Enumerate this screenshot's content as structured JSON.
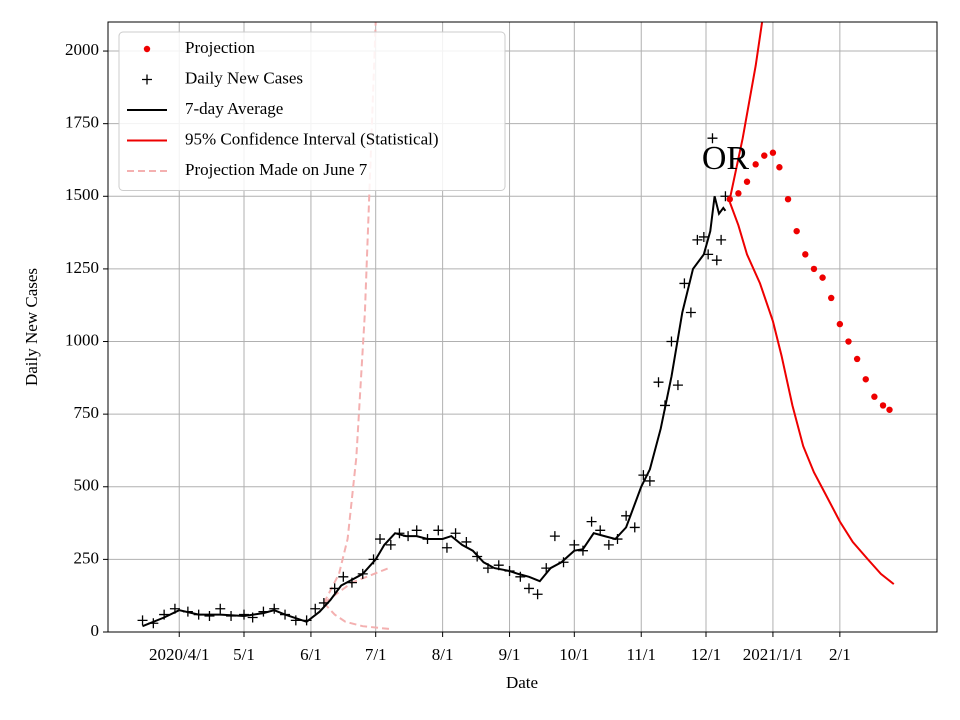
{
  "chart_data": {
    "type": "line",
    "xlabel": "Date",
    "ylabel": "Daily New Cases",
    "xlim": [
      "2020-02-28",
      "2021-03-18"
    ],
    "xticks": [
      {
        "value": "2020-04-01",
        "label": "2020/4/1"
      },
      {
        "value": "2020-05-01",
        "label": "5/1"
      },
      {
        "value": "2020-06-01",
        "label": "6/1"
      },
      {
        "value": "2020-07-01",
        "label": "7/1"
      },
      {
        "value": "2020-08-01",
        "label": "8/1"
      },
      {
        "value": "2020-09-01",
        "label": "9/1"
      },
      {
        "value": "2020-10-01",
        "label": "10/1"
      },
      {
        "value": "2020-11-01",
        "label": "11/1"
      },
      {
        "value": "2020-12-01",
        "label": "12/1"
      },
      {
        "value": "2021-01-01",
        "label": "2021/1/1"
      },
      {
        "value": "2021-02-01",
        "label": "2/1"
      }
    ],
    "ylim": [
      0,
      2100
    ],
    "yticks": [
      0,
      250,
      500,
      750,
      1000,
      1250,
      1500,
      1750,
      2000
    ],
    "grid": true,
    "legend": "upper left",
    "annotations": [
      {
        "text": "OR",
        "x": "2020-12-10",
        "y": 1620
      }
    ],
    "series": [
      {
        "name": "Projection",
        "color": "#ee0000",
        "marker": "dot",
        "x": [
          "2020-12-12",
          "2020-12-16",
          "2020-12-20",
          "2020-12-24",
          "2020-12-28",
          "2021-01-01",
          "2021-01-04",
          "2021-01-08",
          "2021-01-12",
          "2021-01-16",
          "2021-01-20",
          "2021-01-24",
          "2021-01-28",
          "2021-02-01",
          "2021-02-05",
          "2021-02-09",
          "2021-02-13",
          "2021-02-17",
          "2021-02-21",
          "2021-02-24"
        ],
        "values": [
          1490,
          1510,
          1550,
          1610,
          1640,
          1650,
          1600,
          1490,
          1380,
          1300,
          1250,
          1220,
          1150,
          1060,
          1000,
          940,
          870,
          810,
          780,
          765
        ]
      },
      {
        "name": "Daily New Cases",
        "color": "#000000",
        "marker": "plus",
        "x": [
          "2020-03-15",
          "2020-03-20",
          "2020-03-25",
          "2020-03-30",
          "2020-04-05",
          "2020-04-10",
          "2020-04-15",
          "2020-04-20",
          "2020-04-25",
          "2020-05-01",
          "2020-05-05",
          "2020-05-10",
          "2020-05-15",
          "2020-05-20",
          "2020-05-25",
          "2020-05-30",
          "2020-06-03",
          "2020-06-07",
          "2020-06-12",
          "2020-06-16",
          "2020-06-20",
          "2020-06-25",
          "2020-06-30",
          "2020-07-03",
          "2020-07-08",
          "2020-07-12",
          "2020-07-16",
          "2020-07-20",
          "2020-07-25",
          "2020-07-30",
          "2020-08-03",
          "2020-08-07",
          "2020-08-12",
          "2020-08-17",
          "2020-08-22",
          "2020-08-27",
          "2020-09-01",
          "2020-09-06",
          "2020-09-10",
          "2020-09-14",
          "2020-09-18",
          "2020-09-22",
          "2020-09-26",
          "2020-10-01",
          "2020-10-05",
          "2020-10-09",
          "2020-10-13",
          "2020-10-17",
          "2020-10-21",
          "2020-10-25",
          "2020-10-29",
          "2020-11-02",
          "2020-11-05",
          "2020-11-09",
          "2020-11-12",
          "2020-11-15",
          "2020-11-18",
          "2020-11-21",
          "2020-11-24",
          "2020-11-27",
          "2020-11-30",
          "2020-12-02",
          "2020-12-04",
          "2020-12-06",
          "2020-12-08",
          "2020-12-10"
        ],
        "values": [
          40,
          30,
          60,
          80,
          70,
          60,
          55,
          80,
          55,
          60,
          50,
          70,
          80,
          60,
          40,
          40,
          80,
          100,
          150,
          190,
          170,
          200,
          250,
          320,
          300,
          340,
          330,
          350,
          320,
          350,
          290,
          340,
          310,
          260,
          220,
          230,
          210,
          190,
          150,
          130,
          220,
          330,
          240,
          300,
          280,
          380,
          350,
          300,
          320,
          400,
          360,
          540,
          520,
          860,
          780,
          1000,
          850,
          1200,
          1100,
          1350,
          1360,
          1300,
          1700,
          1280,
          1350,
          1500
        ]
      },
      {
        "name": "7-day Average",
        "color": "#000000",
        "marker": "line",
        "x": [
          "2020-03-15",
          "2020-03-25",
          "2020-04-01",
          "2020-04-10",
          "2020-04-20",
          "2020-05-01",
          "2020-05-10",
          "2020-05-15",
          "2020-05-20",
          "2020-05-30",
          "2020-06-05",
          "2020-06-10",
          "2020-06-15",
          "2020-06-20",
          "2020-06-25",
          "2020-07-01",
          "2020-07-05",
          "2020-07-10",
          "2020-07-15",
          "2020-07-20",
          "2020-07-25",
          "2020-08-01",
          "2020-08-05",
          "2020-08-10",
          "2020-08-15",
          "2020-08-20",
          "2020-08-25",
          "2020-09-01",
          "2020-09-05",
          "2020-09-10",
          "2020-09-15",
          "2020-09-20",
          "2020-09-25",
          "2020-10-01",
          "2020-10-05",
          "2020-10-10",
          "2020-10-15",
          "2020-10-20",
          "2020-10-25",
          "2020-11-01",
          "2020-11-05",
          "2020-11-10",
          "2020-11-15",
          "2020-11-20",
          "2020-11-25",
          "2020-11-30",
          "2020-12-03",
          "2020-12-05",
          "2020-12-07",
          "2020-12-09",
          "2020-12-10"
        ],
        "values": [
          20,
          50,
          75,
          60,
          60,
          55,
          65,
          75,
          60,
          35,
          70,
          110,
          160,
          180,
          200,
          250,
          300,
          340,
          330,
          330,
          320,
          320,
          330,
          300,
          280,
          240,
          220,
          210,
          200,
          190,
          175,
          220,
          240,
          280,
          285,
          340,
          330,
          320,
          360,
          500,
          560,
          700,
          880,
          1100,
          1250,
          1300,
          1380,
          1500,
          1440,
          1460,
          1450
        ]
      },
      {
        "name": "95% Confidence Interval (Statistical)",
        "color": "#ee0000",
        "marker": "line",
        "x": [
          "2020-12-12",
          "2020-12-18",
          "2020-12-24",
          "2020-12-27",
          null,
          "2020-12-12",
          "2020-12-16",
          "2020-12-20",
          "2020-12-26",
          "2021-01-01",
          "2021-01-05",
          "2021-01-10",
          "2021-01-15",
          "2021-01-20",
          "2021-01-25",
          "2021-02-01",
          "2021-02-07",
          "2021-02-14",
          "2021-02-20",
          "2021-02-26"
        ],
        "values": [
          1490,
          1700,
          1950,
          2100,
          null,
          1480,
          1400,
          1300,
          1200,
          1070,
          950,
          780,
          640,
          550,
          480,
          380,
          310,
          250,
          200,
          165
        ]
      },
      {
        "name": "Projection Made on June 7",
        "color": "#f4b0b0",
        "marker": "dash",
        "x": [
          "2020-06-07",
          "2020-06-14",
          "2020-06-18",
          "2020-06-22",
          "2020-06-26",
          "2020-06-29",
          "2020-07-01",
          null,
          "2020-06-07",
          "2020-06-20",
          "2020-07-07",
          null,
          "2020-06-07",
          "2020-06-12",
          "2020-06-17",
          "2020-06-25",
          "2020-07-08"
        ],
        "values": [
          100,
          200,
          320,
          600,
          1100,
          1700,
          2100,
          null,
          100,
          170,
          220,
          null,
          100,
          60,
          35,
          20,
          10
        ]
      }
    ]
  }
}
